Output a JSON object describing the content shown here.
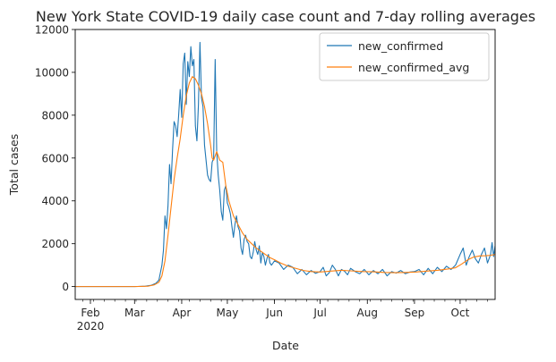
{
  "chart_data": {
    "type": "line",
    "title": "New York State COVID-19 daily case count and 7-day rolling averages",
    "xlabel": "Date",
    "ylabel": "Total cases",
    "x_range": [
      "2020-01-22",
      "2020-10-24"
    ],
    "ylim": [
      -600,
      12000
    ],
    "yticks": [
      0,
      2000,
      4000,
      6000,
      8000,
      10000,
      12000
    ],
    "xticks": [
      {
        "date": "2020-02-01",
        "label": "Feb",
        "sublabel": "2020"
      },
      {
        "date": "2020-03-01",
        "label": "Mar",
        "sublabel": ""
      },
      {
        "date": "2020-04-01",
        "label": "Apr",
        "sublabel": ""
      },
      {
        "date": "2020-05-01",
        "label": "May",
        "sublabel": ""
      },
      {
        "date": "2020-06-01",
        "label": "Jun",
        "sublabel": ""
      },
      {
        "date": "2020-07-01",
        "label": "Jul",
        "sublabel": ""
      },
      {
        "date": "2020-08-01",
        "label": "Aug",
        "sublabel": ""
      },
      {
        "date": "2020-09-01",
        "label": "Sep",
        "sublabel": ""
      },
      {
        "date": "2020-10-01",
        "label": "Oct",
        "sublabel": ""
      }
    ],
    "grid": false,
    "legend": "top-right",
    "series": [
      {
        "name": "new_confirmed",
        "color": "#1f77b4",
        "points": [
          [
            "2020-01-22",
            0
          ],
          [
            "2020-02-15",
            0
          ],
          [
            "2020-03-01",
            0
          ],
          [
            "2020-03-08",
            20
          ],
          [
            "2020-03-12",
            60
          ],
          [
            "2020-03-15",
            150
          ],
          [
            "2020-03-17",
            300
          ],
          [
            "2020-03-19",
            1000
          ],
          [
            "2020-03-20",
            1700
          ],
          [
            "2020-03-21",
            3300
          ],
          [
            "2020-03-22",
            2700
          ],
          [
            "2020-03-23",
            3800
          ],
          [
            "2020-03-24",
            5700
          ],
          [
            "2020-03-25",
            4800
          ],
          [
            "2020-03-26",
            6400
          ],
          [
            "2020-03-27",
            7700
          ],
          [
            "2020-03-28",
            7500
          ],
          [
            "2020-03-29",
            7000
          ],
          [
            "2020-03-30",
            8000
          ],
          [
            "2020-03-31",
            9200
          ],
          [
            "2020-04-01",
            7900
          ],
          [
            "2020-04-02",
            10400
          ],
          [
            "2020-04-03",
            10900
          ],
          [
            "2020-04-04",
            8500
          ],
          [
            "2020-04-05",
            10500
          ],
          [
            "2020-04-06",
            9800
          ],
          [
            "2020-04-07",
            11200
          ],
          [
            "2020-04-08",
            10300
          ],
          [
            "2020-04-09",
            10600
          ],
          [
            "2020-04-10",
            7500
          ],
          [
            "2020-04-11",
            6800
          ],
          [
            "2020-04-12",
            8500
          ],
          [
            "2020-04-13",
            11400
          ],
          [
            "2020-04-14",
            8800
          ],
          [
            "2020-04-15",
            8400
          ],
          [
            "2020-04-16",
            6600
          ],
          [
            "2020-04-17",
            5900
          ],
          [
            "2020-04-18",
            5200
          ],
          [
            "2020-04-19",
            5000
          ],
          [
            "2020-04-20",
            4900
          ],
          [
            "2020-04-21",
            5800
          ],
          [
            "2020-04-22",
            6000
          ],
          [
            "2020-04-23",
            10600
          ],
          [
            "2020-04-24",
            6300
          ],
          [
            "2020-04-25",
            5200
          ],
          [
            "2020-04-26",
            4500
          ],
          [
            "2020-04-27",
            3500
          ],
          [
            "2020-04-28",
            3100
          ],
          [
            "2020-04-29",
            4500
          ],
          [
            "2020-04-30",
            4700
          ],
          [
            "2020-05-01",
            3900
          ],
          [
            "2020-05-02",
            3700
          ],
          [
            "2020-05-03",
            3400
          ],
          [
            "2020-05-04",
            2800
          ],
          [
            "2020-05-05",
            2300
          ],
          [
            "2020-05-06",
            2900
          ],
          [
            "2020-05-07",
            3300
          ],
          [
            "2020-05-08",
            2800
          ],
          [
            "2020-05-09",
            2600
          ],
          [
            "2020-05-10",
            1800
          ],
          [
            "2020-05-11",
            1500
          ],
          [
            "2020-05-12",
            2200
          ],
          [
            "2020-05-13",
            2400
          ],
          [
            "2020-05-14",
            2100
          ],
          [
            "2020-05-15",
            2000
          ],
          [
            "2020-05-16",
            1400
          ],
          [
            "2020-05-17",
            1300
          ],
          [
            "2020-05-18",
            1600
          ],
          [
            "2020-05-19",
            2100
          ],
          [
            "2020-05-20",
            1700
          ],
          [
            "2020-05-21",
            1500
          ],
          [
            "2020-05-22",
            1900
          ],
          [
            "2020-05-23",
            1100
          ],
          [
            "2020-05-24",
            1600
          ],
          [
            "2020-05-25",
            1400
          ],
          [
            "2020-05-26",
            1000
          ],
          [
            "2020-05-27",
            1300
          ],
          [
            "2020-05-28",
            1500
          ],
          [
            "2020-05-29",
            1100
          ],
          [
            "2020-05-30",
            1000
          ],
          [
            "2020-06-01",
            1200
          ],
          [
            "2020-06-04",
            1100
          ],
          [
            "2020-06-07",
            800
          ],
          [
            "2020-06-10",
            1000
          ],
          [
            "2020-06-13",
            900
          ],
          [
            "2020-06-16",
            600
          ],
          [
            "2020-06-19",
            800
          ],
          [
            "2020-06-22",
            550
          ],
          [
            "2020-06-25",
            750
          ],
          [
            "2020-06-28",
            620
          ],
          [
            "2020-07-01",
            700
          ],
          [
            "2020-07-03",
            900
          ],
          [
            "2020-07-05",
            500
          ],
          [
            "2020-07-07",
            650
          ],
          [
            "2020-07-09",
            1000
          ],
          [
            "2020-07-11",
            800
          ],
          [
            "2020-07-13",
            500
          ],
          [
            "2020-07-15",
            800
          ],
          [
            "2020-07-17",
            720
          ],
          [
            "2020-07-19",
            550
          ],
          [
            "2020-07-21",
            850
          ],
          [
            "2020-07-24",
            700
          ],
          [
            "2020-07-27",
            600
          ],
          [
            "2020-07-30",
            800
          ],
          [
            "2020-08-02",
            550
          ],
          [
            "2020-08-05",
            750
          ],
          [
            "2020-08-08",
            600
          ],
          [
            "2020-08-11",
            800
          ],
          [
            "2020-08-14",
            500
          ],
          [
            "2020-08-17",
            700
          ],
          [
            "2020-08-20",
            630
          ],
          [
            "2020-08-23",
            750
          ],
          [
            "2020-08-26",
            600
          ],
          [
            "2020-08-29",
            680
          ],
          [
            "2020-09-01",
            700
          ],
          [
            "2020-09-04",
            800
          ],
          [
            "2020-09-07",
            550
          ],
          [
            "2020-09-10",
            850
          ],
          [
            "2020-09-13",
            600
          ],
          [
            "2020-09-16",
            900
          ],
          [
            "2020-09-19",
            700
          ],
          [
            "2020-09-22",
            950
          ],
          [
            "2020-09-25",
            800
          ],
          [
            "2020-09-28",
            1000
          ],
          [
            "2020-10-01",
            1500
          ],
          [
            "2020-10-03",
            1800
          ],
          [
            "2020-10-05",
            1000
          ],
          [
            "2020-10-07",
            1400
          ],
          [
            "2020-10-09",
            1700
          ],
          [
            "2020-10-11",
            1300
          ],
          [
            "2020-10-13",
            1100
          ],
          [
            "2020-10-15",
            1500
          ],
          [
            "2020-10-17",
            1800
          ],
          [
            "2020-10-19",
            1100
          ],
          [
            "2020-10-21",
            1500
          ],
          [
            "2020-10-22",
            2050
          ],
          [
            "2020-10-23",
            1400
          ],
          [
            "2020-10-24",
            1900
          ]
        ]
      },
      {
        "name": "new_confirmed_avg",
        "color": "#ff7f0e",
        "points": [
          [
            "2020-01-22",
            0
          ],
          [
            "2020-03-01",
            0
          ],
          [
            "2020-03-10",
            20
          ],
          [
            "2020-03-14",
            80
          ],
          [
            "2020-03-17",
            200
          ],
          [
            "2020-03-19",
            500
          ],
          [
            "2020-03-21",
            1200
          ],
          [
            "2020-03-23",
            2400
          ],
          [
            "2020-03-25",
            3700
          ],
          [
            "2020-03-27",
            5000
          ],
          [
            "2020-03-29",
            6000
          ],
          [
            "2020-03-31",
            6900
          ],
          [
            "2020-04-02",
            8000
          ],
          [
            "2020-04-04",
            8900
          ],
          [
            "2020-04-06",
            9500
          ],
          [
            "2020-04-08",
            9800
          ],
          [
            "2020-04-10",
            9700
          ],
          [
            "2020-04-12",
            9400
          ],
          [
            "2020-04-14",
            9000
          ],
          [
            "2020-04-16",
            8400
          ],
          [
            "2020-04-18",
            7600
          ],
          [
            "2020-04-20",
            6600
          ],
          [
            "2020-04-21",
            6000
          ],
          [
            "2020-04-22",
            5900
          ],
          [
            "2020-04-24",
            6300
          ],
          [
            "2020-04-26",
            5900
          ],
          [
            "2020-04-28",
            5800
          ],
          [
            "2020-04-30",
            4700
          ],
          [
            "2020-05-02",
            4000
          ],
          [
            "2020-05-05",
            3300
          ],
          [
            "2020-05-08",
            2900
          ],
          [
            "2020-05-11",
            2500
          ],
          [
            "2020-05-14",
            2200
          ],
          [
            "2020-05-17",
            2000
          ],
          [
            "2020-05-20",
            1800
          ],
          [
            "2020-05-23",
            1650
          ],
          [
            "2020-05-26",
            1500
          ],
          [
            "2020-05-29",
            1350
          ],
          [
            "2020-06-01",
            1250
          ],
          [
            "2020-06-05",
            1100
          ],
          [
            "2020-06-10",
            950
          ],
          [
            "2020-06-15",
            850
          ],
          [
            "2020-06-20",
            750
          ],
          [
            "2020-06-25",
            700
          ],
          [
            "2020-07-01",
            680
          ],
          [
            "2020-07-08",
            720
          ],
          [
            "2020-07-15",
            760
          ],
          [
            "2020-07-22",
            730
          ],
          [
            "2020-07-29",
            700
          ],
          [
            "2020-08-05",
            690
          ],
          [
            "2020-08-12",
            660
          ],
          [
            "2020-08-19",
            650
          ],
          [
            "2020-08-26",
            660
          ],
          [
            "2020-09-02",
            680
          ],
          [
            "2020-09-09",
            720
          ],
          [
            "2020-09-16",
            760
          ],
          [
            "2020-09-23",
            820
          ],
          [
            "2020-09-28",
            880
          ],
          [
            "2020-10-02",
            1050
          ],
          [
            "2020-10-06",
            1250
          ],
          [
            "2020-10-10",
            1380
          ],
          [
            "2020-10-14",
            1430
          ],
          [
            "2020-10-18",
            1440
          ],
          [
            "2020-10-21",
            1460
          ],
          [
            "2020-10-24",
            1500
          ]
        ]
      }
    ]
  }
}
